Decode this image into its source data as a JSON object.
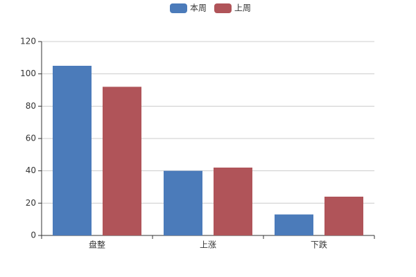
{
  "chart_data": {
    "type": "bar",
    "categories": [
      "盘整",
      "上涨",
      "下跌"
    ],
    "series": [
      {
        "name": "本周",
        "color": "#4b7bba",
        "values": [
          105,
          40,
          13
        ]
      },
      {
        "name": "上周",
        "color": "#b05459",
        "values": [
          92,
          42,
          24
        ]
      }
    ],
    "ylim": [
      0,
      120
    ],
    "yticks": [
      0,
      20,
      40,
      60,
      80,
      100,
      120
    ],
    "grid": true,
    "legend": "top"
  }
}
